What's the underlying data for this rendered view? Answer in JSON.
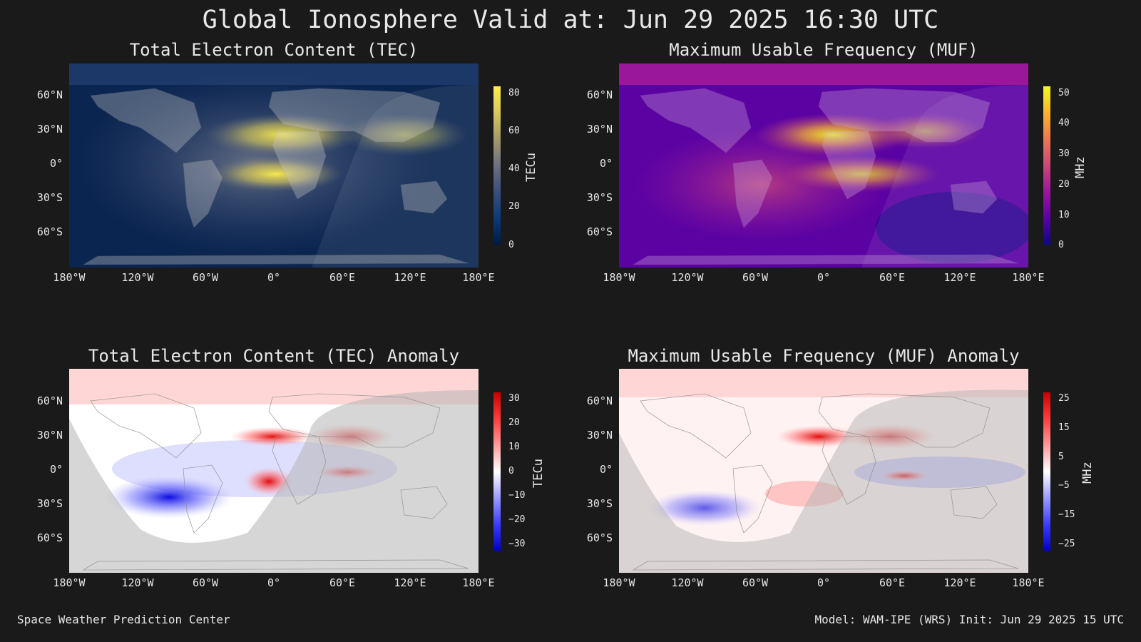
{
  "title": "Global Ionosphere Valid at: Jun 29 2025 16:30 UTC",
  "lat_labels": [
    "60°N",
    "30°N",
    "0°",
    "30°S",
    "60°S"
  ],
  "lon_labels": [
    "180°W",
    "120°W",
    "60°W",
    "0°",
    "60°E",
    "120°E",
    "180°E"
  ],
  "panels": {
    "tec": {
      "title": "Total Electron Content (TEC)",
      "unit": "TECu",
      "ticks": [
        "80",
        "60",
        "40",
        "20",
        "0"
      ],
      "colormap": [
        "#001a45",
        "#0b3a7a",
        "#3b4e7a",
        "#6d7080",
        "#a39a6a",
        "#d8c85a",
        "#fff04a"
      ]
    },
    "muf": {
      "title": "Maximum Usable Frequency (MUF)",
      "unit": "MHz",
      "ticks": [
        "50",
        "40",
        "30",
        "20",
        "10",
        "0"
      ],
      "colormap": [
        "#0d0887",
        "#5b02a3",
        "#9a179b",
        "#cb4778",
        "#eb7852",
        "#fbb32f",
        "#f0f921"
      ]
    },
    "tec_anom": {
      "title": "Total Electron Content (TEC) Anomaly",
      "unit": "TECu",
      "ticks": [
        "30",
        "20",
        "10",
        "0",
        "−10",
        "−20",
        "−30"
      ],
      "colormap": [
        "#0000c8",
        "#3c3cff",
        "#9a9aff",
        "#ffffff",
        "#ff9a9a",
        "#ff3c3c",
        "#c80000"
      ]
    },
    "muf_anom": {
      "title": "Maximum Usable Frequency (MUF) Anomaly",
      "unit": "MHz",
      "ticks": [
        "25",
        "15",
        "5",
        "−5",
        "−15",
        "−25"
      ],
      "colormap": [
        "#0000c8",
        "#3c3cff",
        "#9a9aff",
        "#ffffff",
        "#ff9a9a",
        "#ff3c3c",
        "#c80000"
      ]
    }
  },
  "footer": {
    "left": "Space Weather Prediction Center",
    "right": "Model: WAM-IPE (WRS) Init: Jun 29 2025 15 UTC"
  }
}
